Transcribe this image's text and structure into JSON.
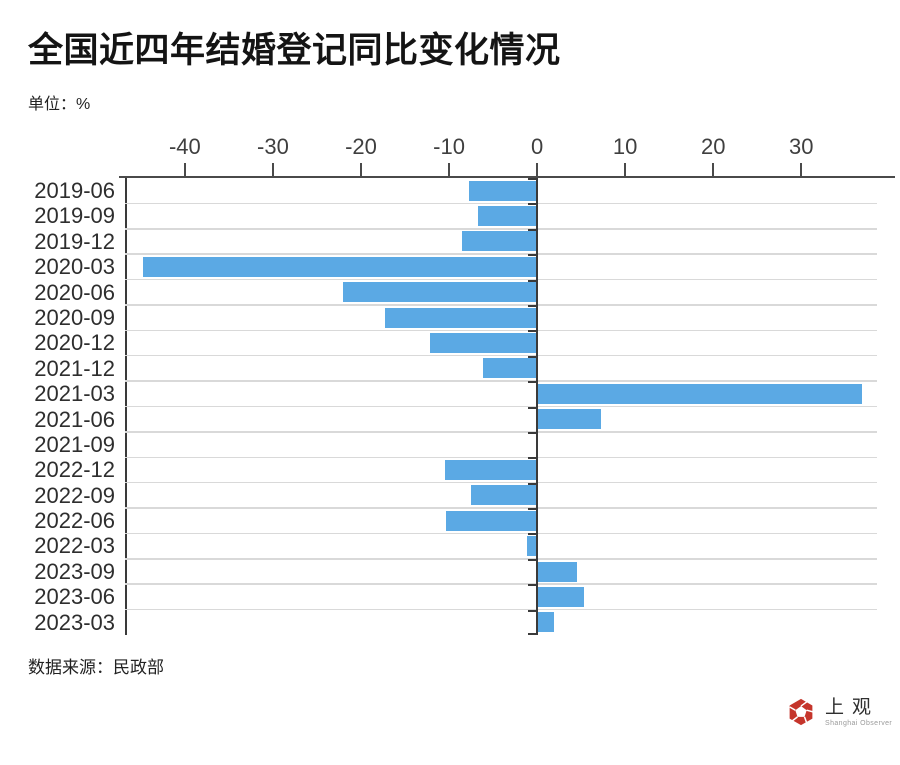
{
  "header": {
    "title": "全国近四年结婚登记同比变化情况",
    "unit": "单位：%"
  },
  "footer": {
    "source": "数据来源：民政部"
  },
  "logo": {
    "name": "上观",
    "subtitle": "Shanghai Observer"
  },
  "colors": {
    "bar": "#5BA9E4",
    "axis": "#3a3a3a",
    "grid": "#d9d9d9",
    "brand_red": "#C5352B",
    "title_text": "#141414"
  },
  "chart_data": {
    "type": "bar",
    "orientation": "horizontal",
    "title": "全国近四年结婚登记同比变化情况",
    "xlabel": "",
    "ylabel": "",
    "grid": true,
    "legend": false,
    "categories": [
      "2019-06",
      "2019-09",
      "2019-12",
      "2020-03",
      "2020-06",
      "2020-09",
      "2020-12",
      "2021-12",
      "2021-03",
      "2021-06",
      "2021-09",
      "2022-12",
      "2022-09",
      "2022-06",
      "2022-03",
      "2023-09",
      "2023-06",
      "2023-03"
    ],
    "values": [
      -7.7,
      -6.7,
      -8.5,
      -44.7,
      -22.0,
      -17.3,
      -12.2,
      -6.1,
      36.9,
      7.3,
      -0.1,
      -10.5,
      -7.5,
      -10.3,
      -1.2,
      4.5,
      5.3,
      1.9
    ],
    "x_ticks": [
      -40,
      -30,
      -20,
      -10,
      0,
      10,
      20,
      30
    ],
    "xlim": [
      -46.8,
      38.6
    ]
  }
}
